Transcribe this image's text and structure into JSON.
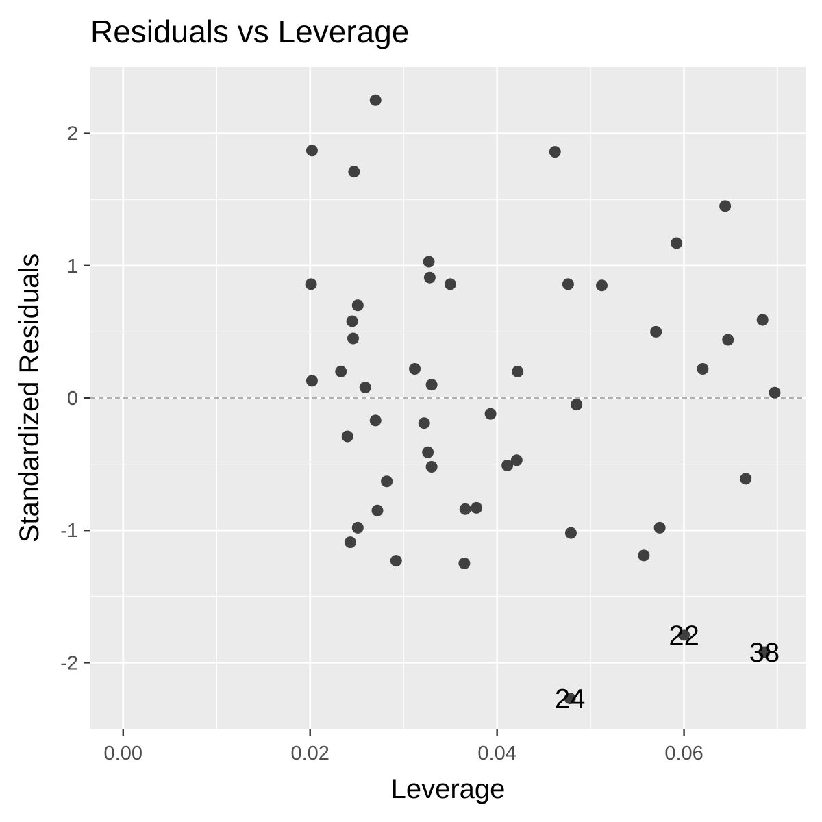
{
  "chart_data": {
    "type": "scatter",
    "title": "Residuals vs Leverage",
    "xlabel": "Leverage",
    "ylabel": "Standardized Residuals",
    "xlim": [
      -0.0035,
      0.073
    ],
    "ylim": [
      -2.5,
      2.5
    ],
    "x_ticks": [
      0.0,
      0.02,
      0.04,
      0.06
    ],
    "x_tick_labels": [
      "0.00",
      "0.02",
      "0.04",
      "0.06"
    ],
    "y_ticks": [
      -2,
      -1,
      0,
      1,
      2
    ],
    "y_tick_labels": [
      "-2",
      "-1",
      "0",
      "1",
      "2"
    ],
    "grid": true,
    "reference_line": {
      "y": 0,
      "style": "dashed"
    },
    "colors": {
      "panel": "#ebebeb",
      "grid": "#ffffff",
      "point": "#404040",
      "reference": "#7f7f7f"
    },
    "points": [
      {
        "x": 0.027,
        "y": 2.25
      },
      {
        "x": 0.0202,
        "y": 1.87
      },
      {
        "x": 0.0247,
        "y": 1.71
      },
      {
        "x": 0.0462,
        "y": 1.86
      },
      {
        "x": 0.0644,
        "y": 1.45
      },
      {
        "x": 0.0592,
        "y": 1.17
      },
      {
        "x": 0.0327,
        "y": 1.03
      },
      {
        "x": 0.0328,
        "y": 0.91
      },
      {
        "x": 0.035,
        "y": 0.86
      },
      {
        "x": 0.0201,
        "y": 0.86
      },
      {
        "x": 0.0476,
        "y": 0.86
      },
      {
        "x": 0.0512,
        "y": 0.85
      },
      {
        "x": 0.0251,
        "y": 0.7
      },
      {
        "x": 0.0245,
        "y": 0.58
      },
      {
        "x": 0.0246,
        "y": 0.45
      },
      {
        "x": 0.0684,
        "y": 0.59
      },
      {
        "x": 0.057,
        "y": 0.5
      },
      {
        "x": 0.0647,
        "y": 0.44
      },
      {
        "x": 0.062,
        "y": 0.22
      },
      {
        "x": 0.0312,
        "y": 0.22
      },
      {
        "x": 0.0422,
        "y": 0.2
      },
      {
        "x": 0.0233,
        "y": 0.2
      },
      {
        "x": 0.0202,
        "y": 0.13
      },
      {
        "x": 0.033,
        "y": 0.1
      },
      {
        "x": 0.0259,
        "y": 0.08
      },
      {
        "x": 0.0697,
        "y": 0.04
      },
      {
        "x": 0.0485,
        "y": -0.05
      },
      {
        "x": 0.0393,
        "y": -0.12
      },
      {
        "x": 0.027,
        "y": -0.17
      },
      {
        "x": 0.0322,
        "y": -0.19
      },
      {
        "x": 0.024,
        "y": -0.29
      },
      {
        "x": 0.0326,
        "y": -0.41
      },
      {
        "x": 0.0421,
        "y": -0.47
      },
      {
        "x": 0.0411,
        "y": -0.51
      },
      {
        "x": 0.033,
        "y": -0.52
      },
      {
        "x": 0.0666,
        "y": -0.61
      },
      {
        "x": 0.0282,
        "y": -0.63
      },
      {
        "x": 0.0366,
        "y": -0.84
      },
      {
        "x": 0.0378,
        "y": -0.83
      },
      {
        "x": 0.0272,
        "y": -0.85
      },
      {
        "x": 0.0251,
        "y": -0.98
      },
      {
        "x": 0.0574,
        "y": -0.98
      },
      {
        "x": 0.0479,
        "y": -1.02
      },
      {
        "x": 0.0243,
        "y": -1.09
      },
      {
        "x": 0.0557,
        "y": -1.19
      },
      {
        "x": 0.0292,
        "y": -1.23
      },
      {
        "x": 0.0365,
        "y": -1.25
      },
      {
        "x": 0.06,
        "y": -1.79,
        "label": "22"
      },
      {
        "x": 0.0686,
        "y": -1.92,
        "label": "38"
      },
      {
        "x": 0.0478,
        "y": -2.27,
        "label": "24"
      }
    ]
  }
}
